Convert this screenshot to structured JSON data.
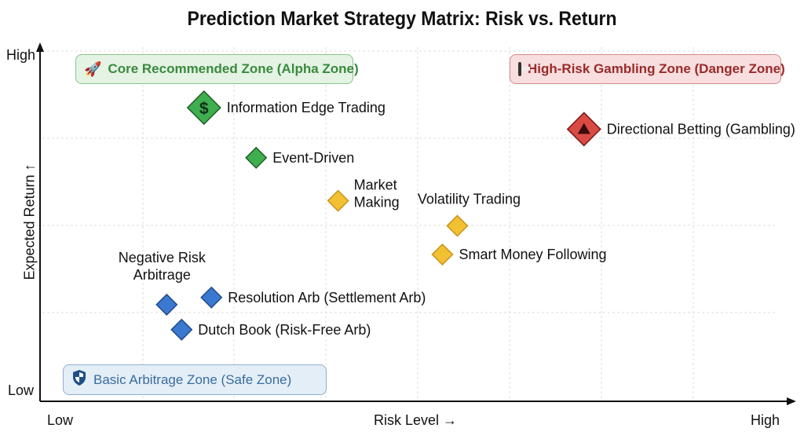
{
  "chart_data": {
    "type": "scatter",
    "title": "Prediction Market Strategy Matrix: Risk vs. Return",
    "xlabel": "Risk Level →",
    "ylabel": "Expected Return ↑",
    "x_tick_labels": {
      "low": "Low",
      "high": "High"
    },
    "y_tick_labels": {
      "low": "Low",
      "high": "High"
    },
    "xlim": [
      0,
      10
    ],
    "ylim": [
      0,
      10
    ],
    "grid": true,
    "zones": [
      {
        "label": "Core Recommended Zone (Alpha Zone)",
        "icon": "rocket-icon",
        "color": "#3a8a3e"
      },
      {
        "label": "High-Risk Gambling Zone (Danger Zone)",
        "icon": "slot-machine-icon",
        "color": "#9a2a2a"
      },
      {
        "label": "Basic Arbitrage Zone (Safe Zone)",
        "icon": "shield-icon",
        "color": "#3a6c9e"
      }
    ],
    "colors": {
      "green": "#3fae4f",
      "yellow": "#f2c033",
      "blue": "#3b78d0",
      "red": "#d94a45"
    },
    "points": [
      {
        "name": "Information Edge Trading",
        "x": 2.2,
        "y": 8.2,
        "color": "green",
        "icon": "dollar-icon",
        "large": true
      },
      {
        "name": "Event-Driven",
        "x": 2.9,
        "y": 6.8,
        "color": "green"
      },
      {
        "name": "Market Making",
        "x": 4.0,
        "y": 5.6,
        "color": "yellow"
      },
      {
        "name": "Volatility Trading",
        "x": 5.6,
        "y": 4.9,
        "color": "yellow"
      },
      {
        "name": "Smart Money Following",
        "x": 5.4,
        "y": 4.1,
        "color": "yellow"
      },
      {
        "name": "Directional Betting (Gambling)",
        "x": 7.3,
        "y": 7.6,
        "color": "red",
        "icon": "warning-icon",
        "large": true
      },
      {
        "name": "Negative Risk Arbitrage",
        "x": 1.7,
        "y": 2.7,
        "color": "blue"
      },
      {
        "name": "Resolution Arb (Settlement Arb)",
        "x": 2.3,
        "y": 2.9,
        "color": "blue"
      },
      {
        "name": "Dutch Book (Risk-Free Arb)",
        "x": 1.9,
        "y": 2.0,
        "color": "blue"
      }
    ]
  }
}
